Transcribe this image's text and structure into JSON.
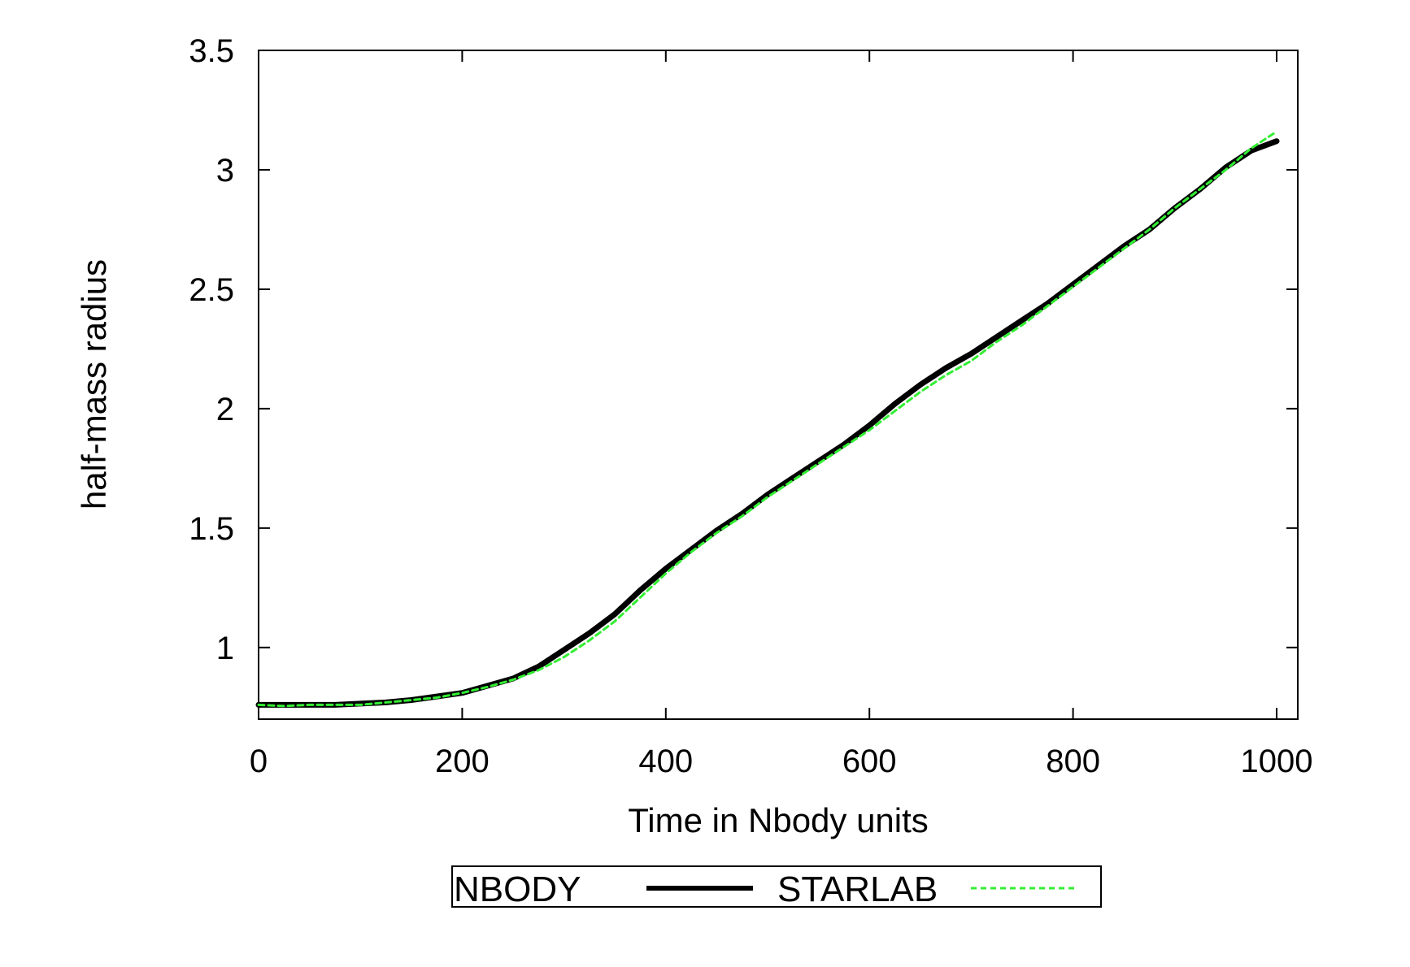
{
  "chart_data": {
    "type": "line",
    "title": "",
    "xlabel": "Time in Nbody units",
    "ylabel": "half-mass radius",
    "xlim": [
      0,
      1020
    ],
    "ylim": [
      0.7,
      3.5
    ],
    "xticks": [
      0,
      200,
      400,
      600,
      800,
      1000
    ],
    "xtick_labels": [
      "0",
      "200",
      "400",
      "600",
      "800",
      "1000"
    ],
    "yticks": [
      1,
      1.5,
      2,
      2.5,
      3,
      3.5
    ],
    "ytick_labels": [
      "1",
      "1.5",
      "2",
      "2.5",
      "3",
      "3.5"
    ],
    "grid": false,
    "legend_position": "bottom-center",
    "series": [
      {
        "name": "NBODY",
        "color": "#000000",
        "style": "solid",
        "x": [
          0,
          25,
          50,
          75,
          100,
          125,
          150,
          175,
          200,
          225,
          250,
          275,
          300,
          325,
          350,
          375,
          400,
          425,
          450,
          475,
          500,
          525,
          550,
          575,
          600,
          625,
          650,
          675,
          700,
          725,
          750,
          775,
          800,
          825,
          850,
          875,
          900,
          925,
          950,
          975,
          1000
        ],
        "y": [
          0.76,
          0.76,
          0.76,
          0.76,
          0.765,
          0.77,
          0.78,
          0.795,
          0.81,
          0.84,
          0.87,
          0.92,
          0.99,
          1.06,
          1.14,
          1.24,
          1.33,
          1.41,
          1.49,
          1.56,
          1.64,
          1.71,
          1.78,
          1.85,
          1.93,
          2.02,
          2.1,
          2.17,
          2.23,
          2.3,
          2.37,
          2.44,
          2.52,
          2.6,
          2.68,
          2.75,
          2.84,
          2.92,
          3.01,
          3.08,
          3.12
        ]
      },
      {
        "name": "STARLAB",
        "color": "#33ee33",
        "style": "dashed",
        "x": [
          0,
          25,
          50,
          75,
          100,
          125,
          150,
          175,
          200,
          225,
          250,
          275,
          300,
          325,
          350,
          375,
          400,
          425,
          450,
          475,
          500,
          525,
          550,
          575,
          600,
          625,
          650,
          675,
          700,
          725,
          750,
          775,
          800,
          825,
          850,
          875,
          900,
          925,
          950,
          975,
          1000
        ],
        "y": [
          0.76,
          0.755,
          0.76,
          0.76,
          0.76,
          0.77,
          0.78,
          0.79,
          0.81,
          0.835,
          0.865,
          0.905,
          0.96,
          1.03,
          1.11,
          1.21,
          1.31,
          1.4,
          1.48,
          1.55,
          1.63,
          1.7,
          1.77,
          1.84,
          1.91,
          1.99,
          2.07,
          2.14,
          2.2,
          2.28,
          2.35,
          2.43,
          2.51,
          2.59,
          2.67,
          2.75,
          2.84,
          2.92,
          3.0,
          3.09,
          3.16
        ]
      }
    ]
  }
}
